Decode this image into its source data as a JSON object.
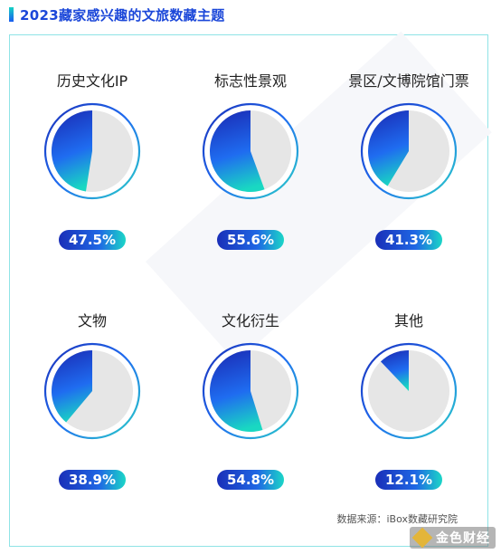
{
  "header": {
    "title": "2023藏家感兴趣的文旅数藏主题"
  },
  "chart_data": {
    "type": "pie",
    "categories": [
      "历史文化IP",
      "标志性景观",
      "景区/文博院馆门票",
      "文物",
      "文化衍生",
      "其他"
    ],
    "values": [
      47.5,
      55.6,
      41.3,
      38.9,
      54.8,
      12.1
    ],
    "value_labels": [
      "47.5%",
      "55.6%",
      "41.3%",
      "38.9%",
      "54.8%",
      "12.1%"
    ],
    "unit": "%",
    "legend": "none",
    "colors": {
      "fill_start": "#1a2fb8",
      "fill_mid": "#1f6cf0",
      "fill_end": "#19d8c2",
      "remainder": "#e6e6e6",
      "ring": "#2ad3c6"
    }
  },
  "footer": {
    "source": "数据来源：iBox数藏研究院"
  },
  "watermark": {
    "brand": "金色财经",
    "icon": "diamond-logo-icon"
  }
}
